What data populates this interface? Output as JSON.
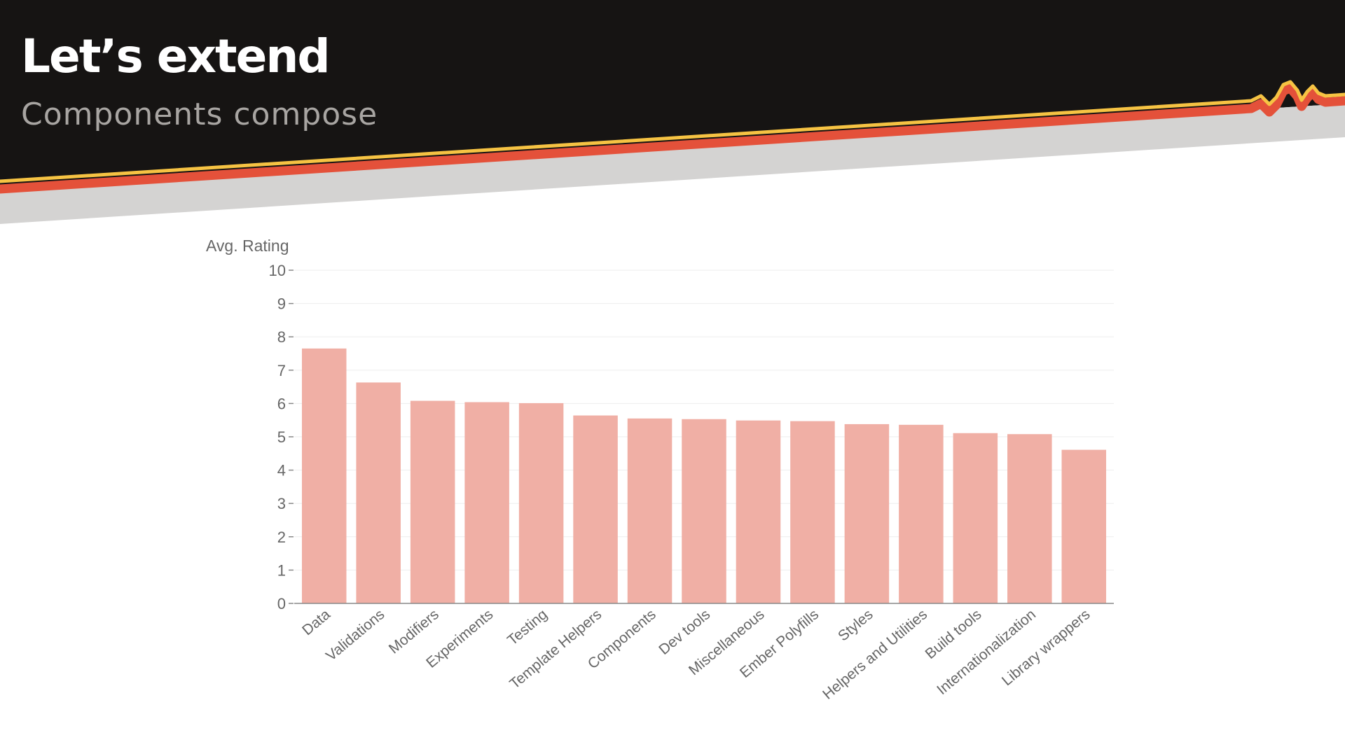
{
  "slide": {
    "title": "Let’s extend",
    "subtitle": "Components compose"
  },
  "colors": {
    "header_background": "#161413",
    "stripe_yellow": "#f6c343",
    "stripe_red": "#e4513a",
    "stripe_gray": "#d4d3d2",
    "bar_fill": "#f0afa5",
    "axis": "#888888",
    "grid": "#eeeeee",
    "label_text": "#666666"
  },
  "chart_data": {
    "type": "bar",
    "ylabel": "Avg. Rating",
    "ylim": [
      0,
      10
    ],
    "yticks": [
      0,
      1,
      2,
      3,
      4,
      5,
      6,
      7,
      8,
      9,
      10
    ],
    "grid": true,
    "categories": [
      "Data",
      "Validations",
      "Modifiers",
      "Experiments",
      "Testing",
      "Template Helpers",
      "Components",
      "Dev tools",
      "Miscellaneous",
      "Ember Polyfills",
      "Styles",
      "Helpers and Utilities",
      "Build tools",
      "Internationalization",
      "Library wrappers"
    ],
    "values": [
      7.65,
      6.63,
      6.08,
      6.04,
      6.01,
      5.64,
      5.55,
      5.53,
      5.49,
      5.47,
      5.38,
      5.36,
      5.11,
      5.08,
      4.61
    ]
  }
}
